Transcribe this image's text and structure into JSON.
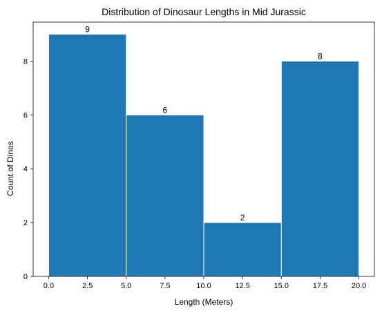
{
  "chart_data": {
    "type": "bar",
    "title": "Distribution of Dinosaur Lengths in Mid Jurassic",
    "xlabel": "Length (Meters)",
    "ylabel": "Count of Dinos",
    "bins": [
      {
        "start": 0,
        "end": 5,
        "value": 9
      },
      {
        "start": 5,
        "end": 10,
        "value": 6
      },
      {
        "start": 10,
        "end": 15,
        "value": 2
      },
      {
        "start": 15,
        "end": 20,
        "value": 8
      }
    ],
    "values": [
      9,
      6,
      2,
      8
    ],
    "xlim": [
      -1,
      21
    ],
    "ylim": [
      0,
      9.45
    ],
    "x_ticks": [
      0.0,
      2.5,
      5.0,
      7.5,
      10.0,
      12.5,
      15.0,
      17.5,
      20.0
    ],
    "x_tick_labels": [
      "0.0",
      "2.5",
      "5.0",
      "7.5",
      "10.0",
      "12.5",
      "15.0",
      "17.5",
      "20.0"
    ],
    "y_ticks": [
      0,
      2,
      4,
      6,
      8
    ],
    "y_tick_labels": [
      "0",
      "2",
      "4",
      "6",
      "8"
    ],
    "bar_color": "#1f77b4",
    "bar_edge_color": "#ffffff",
    "grid": false,
    "legend": false
  }
}
